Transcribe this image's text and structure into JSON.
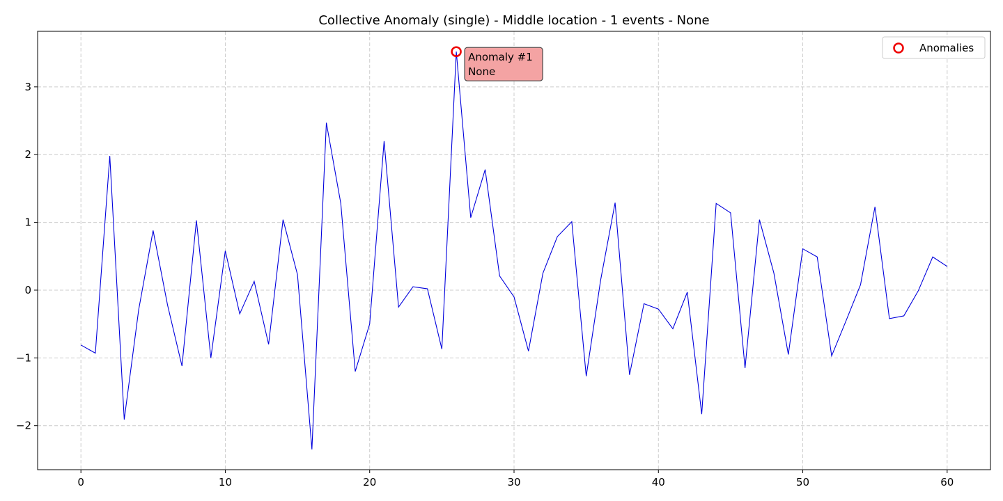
{
  "chart_data": {
    "type": "line",
    "title": "Collective Anomaly (single) - Middle location - 1 events - None",
    "xlabel": "",
    "ylabel": "",
    "xlim": [
      -3,
      63
    ],
    "ylim": [
      -2.65,
      3.82
    ],
    "xticks": [
      0,
      10,
      20,
      30,
      40,
      50,
      60
    ],
    "yticks": [
      -2,
      -1,
      0,
      1,
      2,
      3
    ],
    "ytick_labels": [
      "−2",
      "−1",
      "0",
      "1",
      "2",
      "3"
    ],
    "grid": true,
    "legend_position": "top-right",
    "series": [
      {
        "color": "#0000dd",
        "x": [
          0,
          1,
          2,
          3,
          4,
          5,
          6,
          7,
          8,
          9,
          10,
          11,
          12,
          13,
          14,
          15,
          16,
          17,
          18,
          19,
          20,
          21,
          22,
          23,
          24,
          25,
          26,
          27,
          28,
          29,
          30,
          31,
          32,
          33,
          34,
          35,
          36,
          37,
          38,
          39,
          40,
          41,
          42,
          43,
          44,
          45,
          46,
          47,
          48,
          49,
          50,
          51,
          52,
          53,
          54,
          55,
          56,
          57,
          58,
          59,
          60
        ],
        "values": [
          -0.81,
          -0.93,
          1.98,
          -1.91,
          -0.29,
          0.88,
          -0.22,
          -1.12,
          1.03,
          -1.0,
          0.58,
          -0.35,
          0.13,
          -0.8,
          1.04,
          0.23,
          -2.35,
          2.47,
          1.28,
          -1.2,
          -0.5,
          2.2,
          -0.25,
          0.05,
          0.02,
          -0.87,
          3.52,
          1.07,
          1.78,
          0.21,
          -0.1,
          -0.9,
          0.25,
          0.79,
          1.01,
          -1.27,
          0.15,
          1.29,
          -1.25,
          -0.2,
          -0.28,
          -0.57,
          -0.03,
          -1.83,
          1.28,
          1.14,
          -1.15,
          1.04,
          0.25,
          -0.95,
          0.61,
          0.49,
          -0.97,
          -0.45,
          0.08,
          1.23,
          -0.42,
          -0.38,
          -0.01,
          0.49,
          0.35
        ]
      }
    ],
    "anomalies": {
      "name": "Anomalies",
      "color": "#ee0000",
      "points": [
        {
          "x": 26,
          "y": 3.52
        }
      ]
    },
    "annotations": [
      {
        "x": 26,
        "y": 3.52,
        "line1": "Anomaly #1",
        "line2": "None",
        "bg": "#f4a3a3"
      }
    ]
  }
}
